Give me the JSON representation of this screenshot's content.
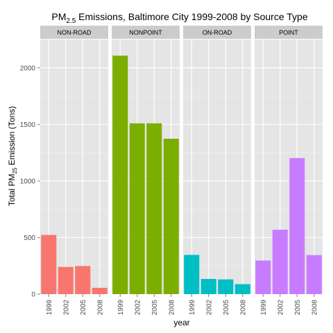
{
  "chart_data": {
    "type": "bar",
    "title": {
      "prefix": "PM",
      "subscript": "2.5",
      "suffix": " Emissions, Baltimore City 1999-2008 by Source Type"
    },
    "xlabel": "year",
    "ylabel": {
      "prefix": "Total PM",
      "subscript": "25",
      "suffix": " Emission (Tons)"
    },
    "categories": [
      "1999",
      "2002",
      "2005",
      "2008"
    ],
    "ylim": [
      0,
      2250
    ],
    "yticks": [
      0,
      500,
      1000,
      1500,
      2000
    ],
    "grid": true,
    "legend": "none",
    "facets": [
      {
        "name": "NON-ROAD",
        "color": "#F8766D",
        "values": [
          522.94,
          240.85,
          248.93,
          55.82
        ]
      },
      {
        "name": "NONPOINT",
        "color": "#7CAE00",
        "values": [
          2107.63,
          1509.5,
          1509.5,
          1373.21
        ]
      },
      {
        "name": "ON-ROAD",
        "color": "#00BFC4",
        "values": [
          346.82,
          134.31,
          130.43,
          88.28
        ]
      },
      {
        "name": "POINT",
        "color": "#C77CFF",
        "values": [
          296.8,
          569.26,
          1202.49,
          344.98
        ]
      }
    ]
  }
}
